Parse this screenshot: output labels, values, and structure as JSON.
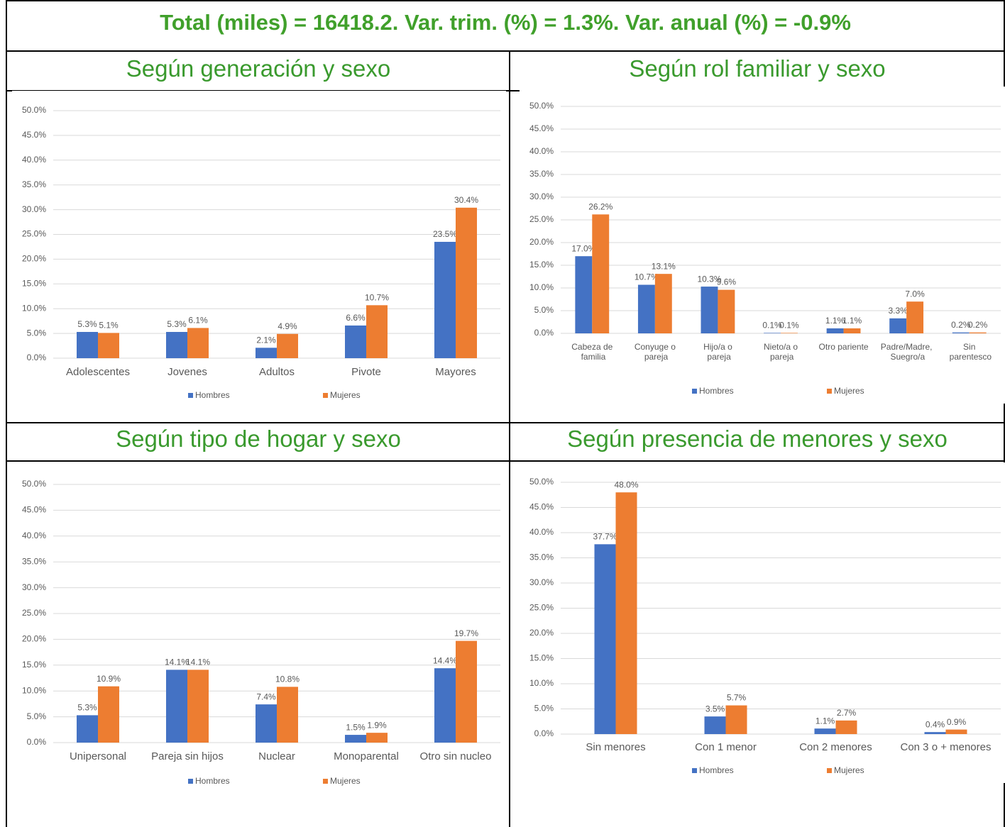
{
  "title": "Total (miles) = 16418.2. Var. trim. (%) = 1.3%. Var. anual (%) = -0.9%",
  "chart_data": [
    {
      "type": "bar",
      "title": "Según generación y sexo",
      "categories": [
        "Adolescentes",
        "Jovenes",
        "Adultos",
        "Pivote",
        "Mayores"
      ],
      "series": [
        {
          "name": "Hombres",
          "color": "#4472c4",
          "values": [
            5.3,
            5.3,
            2.1,
            6.6,
            23.5
          ],
          "value_labels": [
            "5.3%",
            "5.3%",
            "2.1%",
            "6.6%",
            "23.5%"
          ]
        },
        {
          "name": "Mujeres",
          "color": "#ed7d31",
          "values": [
            5.1,
            6.1,
            4.9,
            10.7,
            30.4
          ],
          "value_labels": [
            "5.1%",
            "6.1%",
            "4.9%",
            "10.7%",
            "30.4%"
          ]
        }
      ],
      "ylim": [
        0,
        50
      ],
      "yticks": [
        {
          "value": 0,
          "label": "0.0%"
        },
        {
          "value": 5,
          "label": "5.0%"
        },
        {
          "value": 10,
          "label": "10.0%"
        },
        {
          "value": 15,
          "label": "15.0%"
        },
        {
          "value": 20,
          "label": "20.0%"
        },
        {
          "value": 25,
          "label": "25.0%"
        },
        {
          "value": 30,
          "label": "30.0%"
        },
        {
          "value": 35,
          "label": "35.0%"
        },
        {
          "value": 40,
          "label": "40.0%"
        },
        {
          "value": 45,
          "label": "45.0%"
        },
        {
          "value": 50,
          "label": "50.0%"
        }
      ],
      "grid": true,
      "legend": "bottom"
    },
    {
      "type": "bar",
      "title": "Según rol familiar y sexo",
      "categories": [
        "Cabeza de familia",
        "Conyuge o pareja",
        "Hijo/a o pareja",
        "Nieto/a o pareja",
        "Otro pariente",
        "Padre/Madre, Suegro/a",
        "Sin parentesco"
      ],
      "series": [
        {
          "name": "Hombres",
          "color": "#4472c4",
          "values": [
            17.0,
            10.7,
            10.3,
            0.1,
            1.1,
            3.3,
            0.2
          ],
          "value_labels": [
            "17.0%",
            "10.7%",
            "10.3%",
            "0.1%",
            "1.1%",
            "3.3%",
            "0.2%"
          ]
        },
        {
          "name": "Mujeres",
          "color": "#ed7d31",
          "values": [
            26.2,
            13.1,
            9.6,
            0.1,
            1.1,
            7.0,
            0.2
          ],
          "value_labels": [
            "26.2%",
            "13.1%",
            "9.6%",
            "0.1%",
            "1.1%",
            "7.0%",
            "0.2%"
          ]
        }
      ],
      "ylim": [
        0,
        50
      ],
      "yticks": [
        {
          "value": 0,
          "label": "0.0%"
        },
        {
          "value": 5,
          "label": "5.0%"
        },
        {
          "value": 10,
          "label": "10.0%"
        },
        {
          "value": 15,
          "label": "15.0%"
        },
        {
          "value": 20,
          "label": "20.0%"
        },
        {
          "value": 25,
          "label": "25.0%"
        },
        {
          "value": 30,
          "label": "30.0%"
        },
        {
          "value": 35,
          "label": "35.0%"
        },
        {
          "value": 40,
          "label": "40.0%"
        },
        {
          "value": 45,
          "label": "45.0%"
        },
        {
          "value": 50,
          "label": "50.0%"
        }
      ],
      "grid": true,
      "legend": "bottom"
    },
    {
      "type": "bar",
      "title": "Según tipo de hogar y sexo",
      "categories": [
        "Unipersonal",
        "Pareja sin hijos",
        "Nuclear",
        "Monoparental",
        "Otro sin nucleo"
      ],
      "series": [
        {
          "name": "Hombres",
          "color": "#4472c4",
          "values": [
            5.3,
            14.1,
            7.4,
            1.5,
            14.4
          ],
          "value_labels": [
            "5.3%",
            "14.1%",
            "7.4%",
            "1.5%",
            "14.4%"
          ]
        },
        {
          "name": "Mujeres",
          "color": "#ed7d31",
          "values": [
            10.9,
            14.1,
            10.8,
            1.9,
            19.7
          ],
          "value_labels": [
            "10.9%",
            "14.1%",
            "10.8%",
            "1.9%",
            "19.7%"
          ]
        }
      ],
      "ylim": [
        0,
        50
      ],
      "yticks": [
        {
          "value": 0,
          "label": "0.0%"
        },
        {
          "value": 5,
          "label": "5.0%"
        },
        {
          "value": 10,
          "label": "10.0%"
        },
        {
          "value": 15,
          "label": "15.0%"
        },
        {
          "value": 20,
          "label": "20.0%"
        },
        {
          "value": 25,
          "label": "25.0%"
        },
        {
          "value": 30,
          "label": "30.0%"
        },
        {
          "value": 35,
          "label": "35.0%"
        },
        {
          "value": 40,
          "label": "40.0%"
        },
        {
          "value": 45,
          "label": "45.0%"
        },
        {
          "value": 50,
          "label": "50.0%"
        }
      ],
      "grid": true,
      "legend": "bottom"
    },
    {
      "type": "bar",
      "title": "Según presencia de menores y sexo",
      "categories": [
        "Sin menores",
        "Con 1 menor",
        "Con 2 menores",
        "Con 3 o + menores"
      ],
      "series": [
        {
          "name": "Hombres",
          "color": "#4472c4",
          "values": [
            37.7,
            3.5,
            1.1,
            0.4
          ],
          "value_labels": [
            "37.7%",
            "3.5%",
            "1.1%",
            "0.4%"
          ]
        },
        {
          "name": "Mujeres",
          "color": "#ed7d31",
          "values": [
            48.0,
            5.7,
            2.7,
            0.9
          ],
          "value_labels": [
            "48.0%",
            "5.7%",
            "2.7%",
            "0.9%"
          ]
        }
      ],
      "ylim": [
        0,
        50
      ],
      "yticks": [
        {
          "value": 0,
          "label": "0.0%"
        },
        {
          "value": 5,
          "label": "5.0%"
        },
        {
          "value": 10,
          "label": "10.0%"
        },
        {
          "value": 15,
          "label": "15.0%"
        },
        {
          "value": 20,
          "label": "20.0%"
        },
        {
          "value": 25,
          "label": "25.0%"
        },
        {
          "value": 30,
          "label": "30.0%"
        },
        {
          "value": 35,
          "label": "35.0%"
        },
        {
          "value": 40,
          "label": "40.0%"
        },
        {
          "value": 45,
          "label": "45.0%"
        },
        {
          "value": 50,
          "label": "50.0%"
        }
      ],
      "grid": true,
      "legend": "bottom"
    }
  ]
}
